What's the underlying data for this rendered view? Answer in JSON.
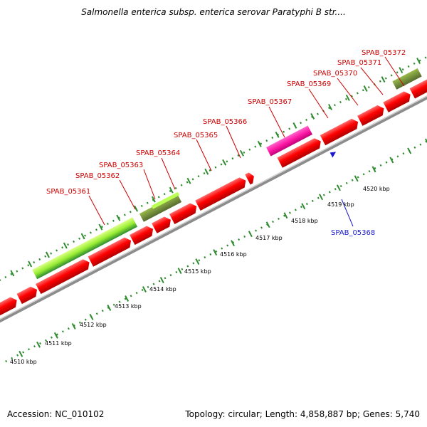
{
  "title": "Salmonella enterica subsp. enterica serovar Paratyphi B str....",
  "footer": {
    "accession": "Accession: NC_010102",
    "summary": "Topology: circular; Length: 4,858,887 bp; Genes: 5,740"
  },
  "colors": {
    "gene_label": "#cc0000",
    "selected_label": "#1a1acc",
    "cds": "#ff0000",
    "rna_pink": "#ff1aa6",
    "lime": "#99ee33",
    "olive": "#6b8e23",
    "teal": "#33ffbb",
    "backbone": "#8c8c8c",
    "ticks": "#2e8b2e"
  },
  "gene_labels": [
    {
      "text": "SPAB_05361"
    },
    {
      "text": "SPAB_05362"
    },
    {
      "text": "SPAB_05363"
    },
    {
      "text": "SPAB_05364"
    },
    {
      "text": "SPAB_05365"
    },
    {
      "text": "SPAB_05366"
    },
    {
      "text": "SPAB_05367"
    },
    {
      "text": "SPAB_05369"
    },
    {
      "text": "SPAB_05370"
    },
    {
      "text": "SPAB_05371"
    },
    {
      "text": "SPAB_05372"
    }
  ],
  "selected_label": "SPAB_05368",
  "kbp_labels": [
    "4510 kbp",
    "4511 kbp",
    "4512 kbp",
    "4513 kbp",
    "4514 kbp",
    "4515 kbp",
    "4516 kbp",
    "4517 kbp",
    "4518 kbp",
    "4519 kbp",
    "4520 kbp"
  ]
}
